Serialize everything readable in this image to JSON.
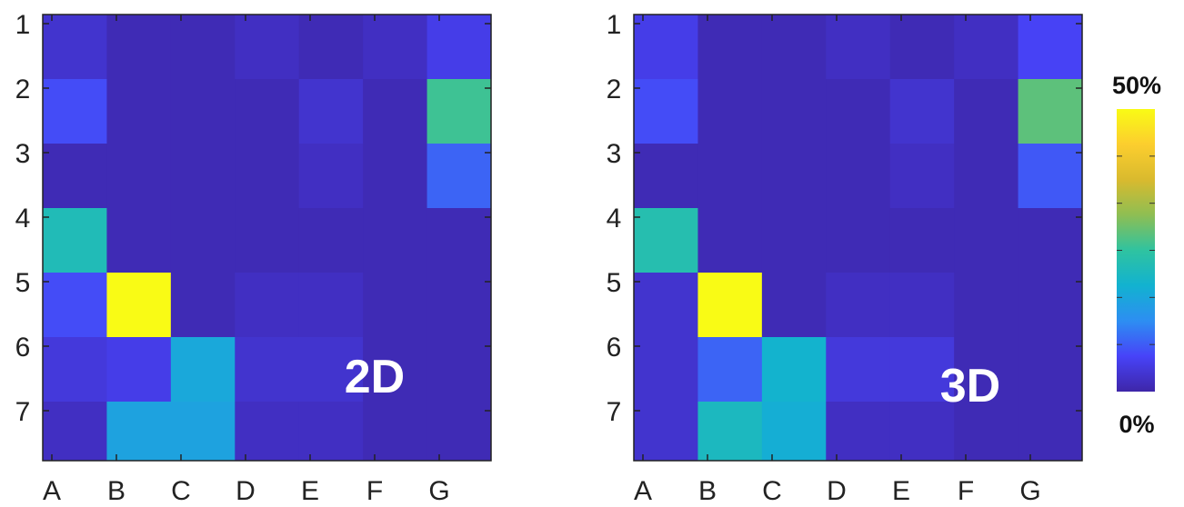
{
  "chart_data": [
    {
      "type": "heatmap",
      "overlay_label": "2D",
      "x_tick_labels": [
        "A",
        "B",
        "C",
        "D",
        "E",
        "F",
        "G"
      ],
      "y_tick_labels": [
        "1",
        "2",
        "3",
        "4",
        "5",
        "6",
        "7"
      ],
      "value_unit": "%",
      "value_range": [
        0,
        50
      ],
      "values": [
        [
          3,
          1,
          1,
          2,
          1,
          2,
          5
        ],
        [
          7,
          1,
          1,
          1,
          3,
          1,
          26
        ],
        [
          1,
          1,
          1,
          1,
          2,
          1,
          9
        ],
        [
          22,
          1,
          1,
          1,
          1,
          1,
          1
        ],
        [
          7,
          50,
          1,
          2,
          2,
          1,
          1
        ],
        [
          4,
          5,
          17,
          3,
          3,
          1,
          1
        ],
        [
          2,
          16,
          16,
          2,
          2,
          1,
          1
        ]
      ]
    },
    {
      "type": "heatmap",
      "overlay_label": "3D",
      "x_tick_labels": [
        "A",
        "B",
        "C",
        "D",
        "E",
        "F",
        "G"
      ],
      "y_tick_labels": [
        "1",
        "2",
        "3",
        "4",
        "5",
        "6",
        "7"
      ],
      "value_unit": "%",
      "value_range": [
        0,
        50
      ],
      "values": [
        [
          5,
          1,
          1,
          2,
          1,
          2,
          6
        ],
        [
          7,
          1,
          1,
          1,
          3,
          1,
          28
        ],
        [
          1,
          1,
          1,
          1,
          2,
          1,
          8
        ],
        [
          23,
          1,
          1,
          1,
          1,
          1,
          1
        ],
        [
          3,
          50,
          1,
          2,
          2,
          1,
          1
        ],
        [
          3,
          9,
          19,
          4,
          4,
          1,
          1
        ],
        [
          3,
          21,
          18,
          2,
          2,
          1,
          1
        ]
      ]
    }
  ],
  "colorbar": {
    "max_label": "50%",
    "min_label": "0%",
    "colors": [
      "#3e26a8",
      "#4743f8",
      "#2d8ef2",
      "#12b2d0",
      "#2fc3a0",
      "#8ebe53",
      "#d9ba2e",
      "#fcce2e",
      "#f9fb15"
    ]
  }
}
